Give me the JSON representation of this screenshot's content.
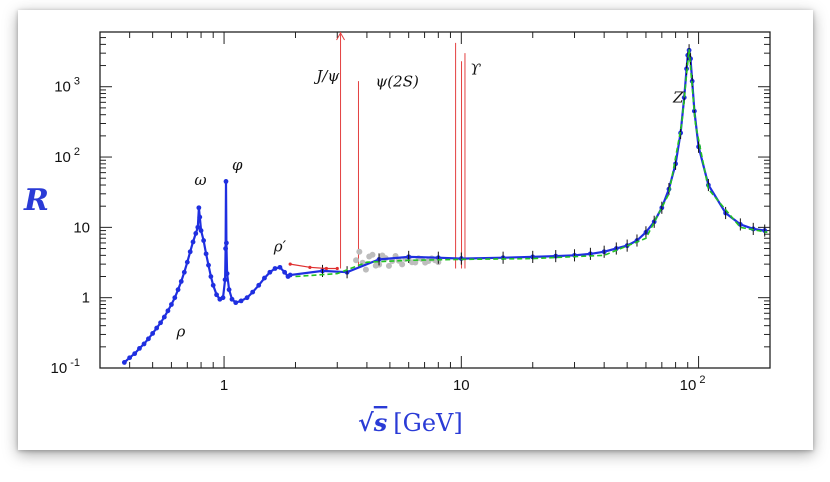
{
  "chart_data": {
    "type": "scatter",
    "title": "",
    "xlabel": "√s [GeV]",
    "xlabel_parts": {
      "sqrt": "√",
      "var": "s",
      "unit": "[GeV]"
    },
    "ylabel": "R",
    "x_scale": "log",
    "y_scale": "log",
    "xlim": [
      0.3,
      200
    ],
    "ylim": [
      0.1,
      6000
    ],
    "x_ticks": [
      {
        "value": 1,
        "base": "1",
        "exp": ""
      },
      {
        "value": 10,
        "base": "10",
        "exp": ""
      },
      {
        "value": 100,
        "base": "10",
        "exp": "2"
      }
    ],
    "y_ticks": [
      {
        "value": 0.1,
        "base": "10",
        "exp": "-1"
      },
      {
        "value": 1,
        "base": "1",
        "exp": ""
      },
      {
        "value": 10,
        "base": "10",
        "exp": ""
      },
      {
        "value": 100,
        "base": "10",
        "exp": "2"
      },
      {
        "value": 1000,
        "base": "10",
        "exp": "3"
      }
    ],
    "annotations": [
      {
        "text": "ρ",
        "x": 0.63,
        "y": 0.28
      },
      {
        "text": "ω",
        "x": 0.75,
        "y": 40
      },
      {
        "text": "φ",
        "x": 1.08,
        "y": 65
      },
      {
        "text": "ρ′",
        "x": 1.62,
        "y": 4.5
      },
      {
        "text": "J/ψ",
        "x": 2.45,
        "y": 1200
      },
      {
        "text": "ψ(2S)",
        "x": 4.35,
        "y": 1000
      },
      {
        "text": "ϒ",
        "x": 10.9,
        "y": 1500
      },
      {
        "text": "Z",
        "x": 78,
        "y": 600
      }
    ],
    "series": [
      {
        "color": "#1f2fe0",
        "values": [
          [
            0.38,
            0.12
          ],
          [
            0.4,
            0.14
          ],
          [
            0.42,
            0.16
          ],
          [
            0.44,
            0.19
          ],
          [
            0.46,
            0.22
          ],
          [
            0.48,
            0.26
          ],
          [
            0.5,
            0.31
          ],
          [
            0.52,
            0.37
          ],
          [
            0.54,
            0.44
          ],
          [
            0.56,
            0.53
          ],
          [
            0.58,
            0.65
          ],
          [
            0.6,
            0.8
          ],
          [
            0.62,
            1.0
          ],
          [
            0.64,
            1.3
          ],
          [
            0.66,
            1.7
          ],
          [
            0.68,
            2.3
          ],
          [
            0.7,
            3.2
          ],
          [
            0.72,
            4.5
          ],
          [
            0.74,
            6.2
          ],
          [
            0.76,
            8.2
          ],
          [
            0.775,
            10
          ],
          [
            0.783,
            19
          ],
          [
            0.79,
            14
          ],
          [
            0.8,
            9
          ],
          [
            0.82,
            6.5
          ],
          [
            0.84,
            4.2
          ],
          [
            0.86,
            2.9
          ],
          [
            0.88,
            2.0
          ],
          [
            0.9,
            1.5
          ],
          [
            0.93,
            1.1
          ],
          [
            0.96,
            0.95
          ],
          [
            0.99,
            1.0
          ],
          [
            1.01,
            1.8
          ],
          [
            1.015,
            5
          ],
          [
            1.019,
            45
          ],
          [
            1.023,
            6
          ],
          [
            1.03,
            2.2
          ],
          [
            1.05,
            1.3
          ],
          [
            1.08,
            0.95
          ],
          [
            1.12,
            0.85
          ],
          [
            1.18,
            0.9
          ],
          [
            1.25,
            1.0
          ],
          [
            1.32,
            1.2
          ],
          [
            1.4,
            1.5
          ],
          [
            1.48,
            1.9
          ],
          [
            1.56,
            2.3
          ],
          [
            1.64,
            2.6
          ],
          [
            1.72,
            2.7
          ],
          [
            1.8,
            2.3
          ],
          [
            1.86,
            2.0
          ],
          [
            1.9,
            2.1
          ],
          [
            2.6,
            2.4
          ],
          [
            3.3,
            2.3
          ],
          [
            4.5,
            3.5
          ],
          [
            6,
            3.8
          ],
          [
            8,
            3.7
          ],
          [
            10,
            3.6
          ],
          [
            15,
            3.7
          ],
          [
            20,
            3.8
          ],
          [
            25,
            3.9
          ],
          [
            30,
            4.0
          ],
          [
            35,
            4.2
          ],
          [
            40,
            4.5
          ],
          [
            45,
            5.0
          ],
          [
            50,
            5.5
          ],
          [
            55,
            6.5
          ],
          [
            60,
            8.5
          ],
          [
            65,
            12
          ],
          [
            70,
            19
          ],
          [
            75,
            35
          ],
          [
            80,
            80
          ],
          [
            84,
            220
          ],
          [
            87,
            700
          ],
          [
            89,
            1800
          ],
          [
            90,
            2800
          ],
          [
            91.2,
            3300
          ],
          [
            92.5,
            2500
          ],
          [
            94,
            1200
          ],
          [
            96,
            450
          ],
          [
            100,
            140
          ],
          [
            110,
            40
          ],
          [
            130,
            16
          ],
          [
            150,
            11
          ],
          [
            170,
            9.5
          ],
          [
            190,
            9
          ]
        ]
      },
      {
        "color": "#22c322",
        "values": [
          [
            2.0,
            2.0
          ],
          [
            3.0,
            2.2
          ],
          [
            4.0,
            3.2
          ],
          [
            6,
            3.4
          ],
          [
            10,
            3.5
          ],
          [
            20,
            3.6
          ],
          [
            40,
            4.0
          ],
          [
            60,
            7
          ],
          [
            75,
            30
          ],
          [
            85,
            300
          ],
          [
            89,
            1500
          ],
          [
            91.2,
            3400
          ],
          [
            93,
            1500
          ],
          [
            97,
            300
          ],
          [
            110,
            35
          ],
          [
            150,
            10
          ],
          [
            195,
            8.5
          ]
        ]
      },
      {
        "color": "#e03030",
        "values": [
          [
            1.9,
            3.0
          ],
          [
            2.3,
            2.7
          ],
          [
            2.7,
            2.6
          ],
          [
            3.0,
            2.6
          ]
        ]
      }
    ]
  }
}
